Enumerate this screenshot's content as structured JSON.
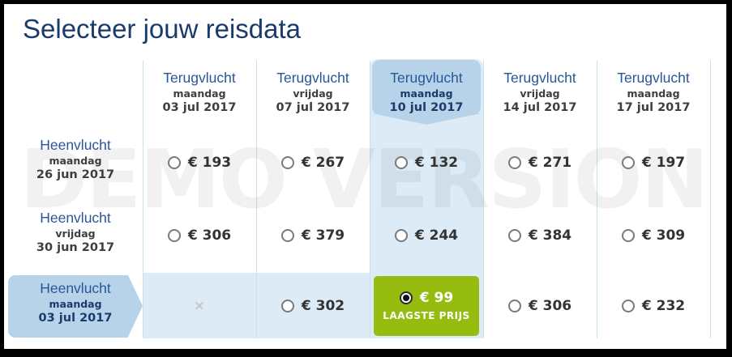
{
  "title": "Selecteer jouw reisdata",
  "watermark": "DEMO VERSION",
  "legend": {
    "return_label": "Terugvlucht",
    "outbound_label": "Heenvlucht"
  },
  "columns": [
    {
      "day": "maandag",
      "date": "03 jul 2017",
      "highlighted": false
    },
    {
      "day": "vrijdag",
      "date": "07 jul 2017",
      "highlighted": false
    },
    {
      "day": "maandag",
      "date": "10 jul 2017",
      "highlighted": true
    },
    {
      "day": "vrijdag",
      "date": "14 jul 2017",
      "highlighted": false
    },
    {
      "day": "maandag",
      "date": "17 jul 2017",
      "highlighted": false
    }
  ],
  "rows": [
    {
      "day": "maandag",
      "date": "26 jun 2017",
      "highlighted": false,
      "cells": [
        {
          "price": "€ 193"
        },
        {
          "price": "€ 267"
        },
        {
          "price": "€ 132"
        },
        {
          "price": "€ 271"
        },
        {
          "price": "€ 197"
        }
      ]
    },
    {
      "day": "vrijdag",
      "date": "30 jun 2017",
      "highlighted": false,
      "cells": [
        {
          "price": "€ 306"
        },
        {
          "price": "€ 379"
        },
        {
          "price": "€ 244"
        },
        {
          "price": "€ 384"
        },
        {
          "price": "€ 309"
        }
      ]
    },
    {
      "day": "maandag",
      "date": "03 jul 2017",
      "highlighted": true,
      "cells": [
        {
          "unavailable": true,
          "symbol": "×"
        },
        {
          "price": "€ 302"
        },
        {
          "price": "€ 99",
          "selected": true,
          "badge": "LAAGSTE PRIJS"
        },
        {
          "price": "€ 306"
        },
        {
          "price": "€ 232"
        }
      ]
    }
  ],
  "colors": {
    "band": "#dcebf6",
    "cap": "#b7d3ea",
    "green": "#95bc0f",
    "navy": "#1b3a6c",
    "header_blue": "#2a5699"
  }
}
